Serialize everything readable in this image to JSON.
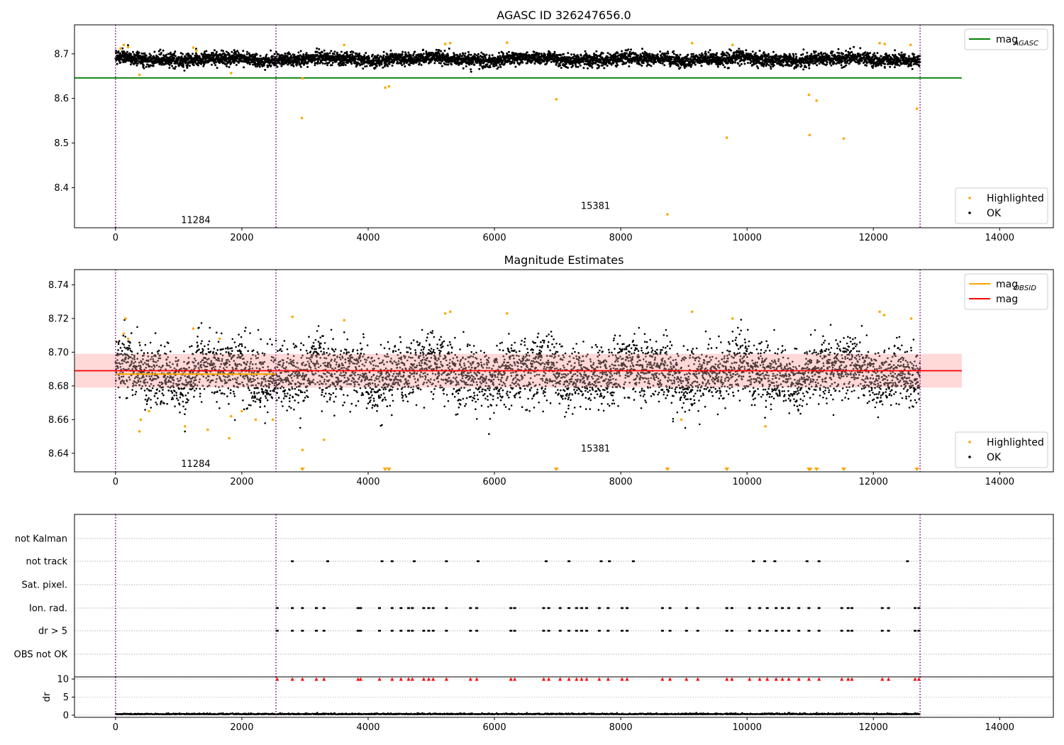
{
  "chart_data": [
    {
      "type": "scatter",
      "title": "AGASC ID 326247656.0",
      "xlim": [
        -650,
        14850
      ],
      "ylim": [
        8.31,
        8.765
      ],
      "xticks": [
        0,
        2000,
        4000,
        6000,
        8000,
        10000,
        12000,
        14000
      ],
      "yticks": [
        8.4,
        8.5,
        8.6,
        8.7
      ],
      "ytick_labels": [
        "8.4",
        "8.5",
        "8.6",
        "8.7"
      ],
      "vlines": [
        0,
        2540,
        12740
      ],
      "hline": {
        "name": "mag_AGASC",
        "y": 8.646,
        "x": [
          -650,
          13400
        ],
        "color": "#008000"
      },
      "annotations": [
        {
          "text": "11284",
          "x": 1270,
          "y": 8.32
        },
        {
          "text": "15381",
          "x": 7600,
          "y": 8.352
        }
      ],
      "legends": [
        {
          "position": "top-right",
          "items": [
            {
              "label": "mag",
              "sub": "AGASC",
              "color": "#008000",
              "marker": "line"
            }
          ]
        },
        {
          "position": "bottom-right",
          "items": [
            {
              "label": "Highlighted",
              "color": "#ffa500",
              "marker": "dot"
            },
            {
              "label": "OK",
              "color": "#000000",
              "marker": "dot"
            }
          ]
        }
      ],
      "series": [
        {
          "name": "OK",
          "color": "#000000",
          "x_range": [
            0,
            12740
          ],
          "y_center": 8.688,
          "y_spread": 0.009
        },
        {
          "name": "Highlighted",
          "color": "#ffa500",
          "x": [
            2960,
            2950,
            4270,
            4330,
            6980,
            9680,
            10980,
            10990,
            11100,
            11530,
            12690,
            8740,
            80,
            130,
            200,
            380,
            1230,
            1830,
            1280,
            3620,
            5220,
            5300,
            6200,
            9130,
            9770,
            12100,
            12180,
            12590
          ],
          "y": [
            8.645,
            8.556,
            8.624,
            8.627,
            8.598,
            8.512,
            8.608,
            8.518,
            8.595,
            8.51,
            8.577,
            8.34,
            8.712,
            8.72,
            8.715,
            8.653,
            8.714,
            8.657,
            8.707,
            8.72,
            8.722,
            8.724,
            8.725,
            8.724,
            8.72,
            8.724,
            8.722,
            8.72
          ]
        }
      ]
    },
    {
      "type": "scatter",
      "title": "Magnitude Estimates",
      "xlim": [
        -650,
        14850
      ],
      "ylim": [
        8.629,
        8.749
      ],
      "xticks": [
        0,
        2000,
        4000,
        6000,
        8000,
        10000,
        12000,
        14000
      ],
      "yticks": [
        8.64,
        8.66,
        8.68,
        8.7,
        8.72,
        8.74
      ],
      "ytick_labels": [
        "8.64",
        "8.66",
        "8.68",
        "8.70",
        "8.72",
        "8.74"
      ],
      "vlines": [
        0,
        2540,
        12740
      ],
      "band": {
        "y": [
          8.679,
          8.699
        ],
        "x": [
          -650,
          13400
        ],
        "color": "#ffc0c0"
      },
      "hline": {
        "name": "mag",
        "y": 8.689,
        "x": [
          -650,
          13400
        ],
        "color": "#ff0000"
      },
      "obsid_line": {
        "name": "mag_OBSID",
        "y": 8.687,
        "x": [
          0,
          2540
        ],
        "color": "#ffa500"
      },
      "annotations": [
        {
          "text": "11284",
          "x": 1270,
          "y": 8.632
        },
        {
          "text": "15381",
          "x": 7600,
          "y": 8.641
        }
      ],
      "legends": [
        {
          "position": "top-right",
          "items": [
            {
              "label": "mag",
              "sub": "OBSID",
              "color": "#ffa500",
              "marker": "line"
            },
            {
              "label": "mag",
              "sub": "",
              "color": "#ff0000",
              "marker": "line"
            }
          ]
        },
        {
          "position": "bottom-right",
          "items": [
            {
              "label": "Highlighted",
              "color": "#ffa500",
              "marker": "dot"
            },
            {
              "label": "OK",
              "color": "#000000",
              "marker": "dot"
            }
          ]
        }
      ],
      "series": [
        {
          "name": "OK",
          "color": "#000000",
          "x_range": [
            0,
            12740
          ],
          "y_center": 8.688,
          "y_spread": 0.011
        },
        {
          "name": "Highlighted",
          "color": "#ffa500",
          "x": [
            130,
            160,
            200,
            380,
            400,
            530,
            1100,
            1230,
            1460,
            1650,
            1800,
            1830,
            2000,
            2220,
            2490,
            2800,
            2960,
            3300,
            3620,
            5220,
            5300,
            6200,
            8960,
            9130,
            9770,
            10290,
            12100,
            12170,
            12600
          ],
          "y": [
            8.711,
            8.72,
            8.708,
            8.653,
            8.66,
            8.665,
            8.656,
            8.714,
            8.654,
            8.708,
            8.649,
            8.662,
            8.665,
            8.66,
            8.66,
            8.721,
            8.642,
            8.648,
            8.719,
            8.723,
            8.724,
            8.723,
            8.66,
            8.724,
            8.72,
            8.656,
            8.724,
            8.722,
            8.72
          ]
        },
        {
          "name": "out-of-range",
          "color": "#ffa500",
          "marker": "triangle-down",
          "y": 8.629,
          "x": [
            2960,
            4270,
            4330,
            6980,
            8740,
            9680,
            10980,
            11000,
            11100,
            11530,
            12690
          ]
        }
      ]
    },
    {
      "type": "scatter",
      "title": "",
      "xlim": [
        -650,
        14850
      ],
      "xticks": [
        0,
        2000,
        4000,
        6000,
        8000,
        10000,
        12000,
        14000
      ],
      "vlines": [
        0,
        2540,
        12740
      ],
      "flag_rows": [
        "not Kalman",
        "not track",
        "Sat. pixel.",
        "Ion. rad.",
        "dr > 5",
        "OBS not OK"
      ],
      "flags": {
        "not track": [
          2800,
          3360,
          4220,
          4380,
          4730,
          5240,
          5740,
          6820,
          7180,
          7690,
          7820,
          8200,
          10100,
          10280,
          10440,
          10950,
          11140,
          12540
        ],
        "Ion. rad.": [
          2560,
          2800,
          2960,
          3180,
          3300,
          3840,
          3880,
          4180,
          4380,
          4520,
          4640,
          4700,
          4880,
          4960,
          5030,
          5240,
          5620,
          5720,
          6260,
          6320,
          6780,
          6860,
          7040,
          7180,
          7300,
          7380,
          7460,
          7660,
          7800,
          8020,
          8100,
          8660,
          8780,
          9040,
          9220,
          9680,
          9760,
          10040,
          10200,
          10320,
          10460,
          10560,
          10660,
          10820,
          10980,
          11140,
          11500,
          11600,
          11660,
          12140,
          12240,
          12660,
          12720
        ],
        "dr > 5": [
          2560,
          2800,
          2960,
          3180,
          3300,
          3840,
          3880,
          4180,
          4380,
          4520,
          4640,
          4700,
          4880,
          4960,
          5030,
          5240,
          5620,
          5720,
          6260,
          6320,
          6780,
          6860,
          7040,
          7180,
          7300,
          7380,
          7460,
          7660,
          7800,
          8020,
          8100,
          8660,
          8780,
          9040,
          9220,
          9680,
          9760,
          10040,
          10200,
          10320,
          10460,
          10560,
          10660,
          10820,
          10980,
          11140,
          11500,
          11600,
          11660,
          12140,
          12240,
          12660,
          12720
        ]
      },
      "dr_panel": {
        "ylabel": "dr",
        "ylim": [
          -0.6,
          10.6
        ],
        "yticks": [
          0,
          5,
          10
        ],
        "ytick_labels": [
          "0",
          "5",
          "10"
        ],
        "baseline": {
          "color": "#000000",
          "y_center": 0.2,
          "y_spread": 0.15
        },
        "clipped": {
          "color": "#ff0000",
          "marker": "triangle-up",
          "y": 10
        }
      }
    }
  ]
}
